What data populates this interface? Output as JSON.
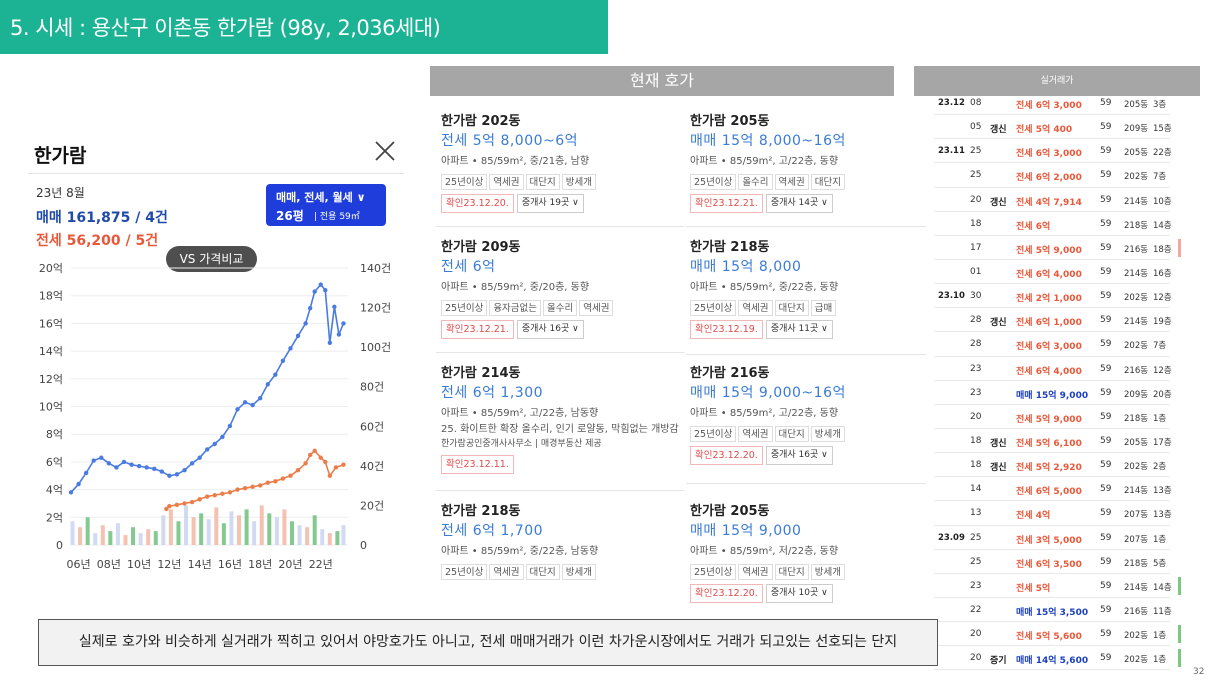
{
  "slide": {
    "title": "5. 시세 : 용산구 이촌동 한가람 (98y, 2,036세대)",
    "page_number": "32",
    "remark": "실제로 호가와 비슷하게 실거래가 찍히고 있어서 야망호가도 아니고, 전세 매매거래가 이런 차가운시장에서도 거래가 되고있는 선호되는 단지"
  },
  "card": {
    "name": "한가람",
    "date": "23년 8월",
    "sale": "매매 161,875 / 4건",
    "jeonse": "전세 56,200 / 5건",
    "filter_types": "매매, 전세, 월세",
    "filter_pyeong": "26평",
    "filter_area": "전용 59㎡",
    "vs_label": "VS 가격비교",
    "close_icon": "close-icon",
    "filter_icon": "chevron-down-icon"
  },
  "chart_data": {
    "type": "line",
    "x_ticks": [
      "06년",
      "08년",
      "10년",
      "12년",
      "14년",
      "16년",
      "18년",
      "20년",
      "22년"
    ],
    "x_range": [
      2005.5,
      2023.8
    ],
    "y_left_ticks": [
      "20억",
      "18억",
      "16억",
      "14억",
      "12억",
      "10억",
      "8억",
      "6억",
      "4억",
      "2억",
      "0"
    ],
    "y_left_range": [
      0,
      20
    ],
    "y_right_ticks": [
      "140건",
      "120건",
      "100건",
      "80건",
      "60건",
      "40건",
      "20건",
      "0"
    ],
    "y_right_range": [
      0,
      140
    ],
    "series": [
      {
        "color": "#4a7be0",
        "x": [
          2005.5,
          2006,
          2006.5,
          2007,
          2007.5,
          2008,
          2008.5,
          2009,
          2009.5,
          2010,
          2010.5,
          2011,
          2011.5,
          2012,
          2012.5,
          2013,
          2013.5,
          2014,
          2014.5,
          2015,
          2015.5,
          2016,
          2016.5,
          2017,
          2017.5,
          2018,
          2018.5,
          2019,
          2019.5,
          2020,
          2020.5,
          2021,
          2021.3,
          2021.6,
          2022,
          2022.3,
          2022.6,
          2022.9,
          2023.2,
          2023.5
        ],
        "y": [
          3.8,
          4.4,
          5.2,
          6.1,
          6.3,
          5.9,
          5.6,
          6.0,
          5.8,
          5.7,
          5.6,
          5.5,
          5.3,
          5.0,
          5.1,
          5.4,
          5.9,
          6.3,
          6.9,
          7.3,
          7.8,
          8.6,
          9.8,
          10.3,
          10.1,
          10.6,
          11.6,
          12.3,
          13.3,
          14.2,
          15.1,
          16.0,
          17.1,
          18.3,
          18.8,
          18.4,
          14.6,
          17.2,
          15.2,
          16.0
        ]
      },
      {
        "color": "#ec7d49",
        "x": [
          2011.8,
          2012,
          2012.5,
          2013,
          2013.5,
          2014,
          2014.5,
          2015,
          2015.5,
          2016,
          2016.5,
          2017,
          2017.5,
          2018,
          2018.5,
          2019,
          2019.5,
          2020,
          2020.5,
          2021,
          2021.3,
          2021.6,
          2022,
          2022.3,
          2022.6,
          2023,
          2023.5
        ],
        "y": [
          2.6,
          2.8,
          2.9,
          3.0,
          3.1,
          3.3,
          3.5,
          3.6,
          3.7,
          3.8,
          4.0,
          4.1,
          4.2,
          4.3,
          4.5,
          4.6,
          4.8,
          5.0,
          5.4,
          5.9,
          6.5,
          6.8,
          6.3,
          6.0,
          5.0,
          5.6,
          5.8
        ]
      }
    ],
    "volume": {
      "type": "bar",
      "colors": [
        "#c9d3f0",
        "#f2b7a3",
        "#6fc07c"
      ],
      "x": [
        2005.6,
        2006.1,
        2006.6,
        2007.1,
        2007.6,
        2008.1,
        2008.6,
        2009.1,
        2009.6,
        2010.1,
        2010.6,
        2011.1,
        2011.6,
        2012.1,
        2012.6,
        2013.1,
        2013.6,
        2014.1,
        2014.6,
        2015.1,
        2015.6,
        2016.1,
        2016.6,
        2017.1,
        2017.6,
        2018.1,
        2018.6,
        2019.1,
        2019.6,
        2020.1,
        2020.6,
        2021.1,
        2021.6,
        2022.1,
        2022.6,
        2023.1,
        2023.5
      ],
      "y": [
        12,
        9,
        14,
        6,
        10,
        7,
        11,
        5,
        9,
        6,
        8,
        7,
        15,
        18,
        12,
        20,
        14,
        16,
        13,
        19,
        11,
        17,
        15,
        18,
        12,
        20,
        16,
        14,
        18,
        12,
        10,
        9,
        15,
        8,
        6,
        7,
        10
      ]
    }
  },
  "listings": {
    "header": "현재 호가",
    "items": [
      {
        "name": "한가람 202동",
        "price": "전세 5억 8,000~6억",
        "spec": "아파트 • 85/59m², 중/21층, 남향",
        "tags": [
          "25년이상",
          "역세권",
          "대단지",
          "방세개"
        ],
        "confirm": "확인23.12.20.",
        "broker": "중개사 19곳"
      },
      {
        "name": "한가람 209동",
        "price": "전세 6억",
        "spec": "아파트 • 85/59m², 중/20층, 동향",
        "tags": [
          "25년이상",
          "융자금없는",
          "올수리",
          "역세권"
        ],
        "confirm": "확인23.12.21.",
        "broker": "중개사 16곳"
      },
      {
        "name": "한가람 214동",
        "price": "전세 6억 1,300",
        "spec": "아파트 • 85/59m², 고/22층, 남동향",
        "extra": "25. 화이트한 확장 올수리, 인기 로얄동, 막힘없는 개방감",
        "agency": "한가람공인중개사사무소 | 매경부동산 제공",
        "tags": [],
        "confirm": "확인23.12.11.",
        "broker": ""
      },
      {
        "name": "한가람 218동",
        "price": "전세 6억 1,700",
        "spec": "아파트 • 85/59m², 중/22층, 남동향",
        "tags": [
          "25년이상",
          "역세권",
          "대단지",
          "방세개"
        ],
        "confirm": "",
        "broker": ""
      },
      {
        "name": "한가람 205동",
        "price": "매매 15억 8,000~16억",
        "spec": "아파트 • 85/59m², 고/22층, 동향",
        "tags": [
          "25년이상",
          "올수리",
          "역세권",
          "대단지"
        ],
        "confirm": "확인23.12.21.",
        "broker": "중개사 14곳"
      },
      {
        "name": "한가람 218동",
        "price": "매매 15억 8,000",
        "spec": "아파트 • 85/59m², 중/22층, 동향",
        "tags": [
          "25년이상",
          "역세권",
          "대단지",
          "급매"
        ],
        "confirm": "확인23.12.19.",
        "broker": "중개사 11곳"
      },
      {
        "name": "한가람 216동",
        "price": "매매 15억 9,000~16억",
        "spec": "아파트 • 85/59m², 고/22층, 동향",
        "tags": [
          "25년이상",
          "역세권",
          "대단지",
          "방세개"
        ],
        "confirm": "확인23.12.20.",
        "broker": "중개사 16곳"
      },
      {
        "name": "한가람 205동",
        "price": "매매 15억 9,000",
        "spec": "아파트 • 85/59m², 저/22층, 동향",
        "tags": [
          "25년이상",
          "역세권",
          "대단지",
          "방세개"
        ],
        "confirm": "확인23.12.20.",
        "broker": "중개사 10곳"
      }
    ]
  },
  "trades": {
    "header": "실거래가",
    "rows": [
      {
        "ym": "23.12",
        "d": "08",
        "t": "",
        "p": "전세 6억 3,000",
        "k": "j",
        "a": "59",
        "dong": "205동",
        "fl": "3층",
        "hl": ""
      },
      {
        "ym": "",
        "d": "05",
        "t": "갱신",
        "p": "전세 5억 400",
        "k": "j",
        "a": "59",
        "dong": "209동",
        "fl": "15층",
        "hl": ""
      },
      {
        "ym": "23.11",
        "d": "25",
        "t": "",
        "p": "전세 6억 3,000",
        "k": "j",
        "a": "59",
        "dong": "205동",
        "fl": "22층",
        "hl": ""
      },
      {
        "ym": "",
        "d": "25",
        "t": "",
        "p": "전세 6억 2,000",
        "k": "j",
        "a": "59",
        "dong": "202동",
        "fl": "7층",
        "hl": ""
      },
      {
        "ym": "",
        "d": "20",
        "t": "갱신",
        "p": "전세 4억 7,914",
        "k": "j",
        "a": "59",
        "dong": "214동",
        "fl": "10층",
        "hl": ""
      },
      {
        "ym": "",
        "d": "18",
        "t": "",
        "p": "전세 6억",
        "k": "j",
        "a": "59",
        "dong": "218동",
        "fl": "14층",
        "hl": ""
      },
      {
        "ym": "",
        "d": "17",
        "t": "",
        "p": "전세 5억 9,000",
        "k": "j",
        "a": "59",
        "dong": "216동",
        "fl": "18층",
        "hl": "#f2a99b"
      },
      {
        "ym": "",
        "d": "01",
        "t": "",
        "p": "전세 6억 4,000",
        "k": "j",
        "a": "59",
        "dong": "214동",
        "fl": "16층",
        "hl": ""
      },
      {
        "ym": "23.10",
        "d": "30",
        "t": "",
        "p": "전세 2억 1,000",
        "k": "j",
        "a": "59",
        "dong": "202동",
        "fl": "12층",
        "hl": ""
      },
      {
        "ym": "",
        "d": "28",
        "t": "갱신",
        "p": "전세 6억 1,000",
        "k": "j",
        "a": "59",
        "dong": "214동",
        "fl": "19층",
        "hl": ""
      },
      {
        "ym": "",
        "d": "28",
        "t": "",
        "p": "전세 6억 3,000",
        "k": "j",
        "a": "59",
        "dong": "202동",
        "fl": "7층",
        "hl": ""
      },
      {
        "ym": "",
        "d": "23",
        "t": "",
        "p": "전세 6억 4,000",
        "k": "j",
        "a": "59",
        "dong": "216동",
        "fl": "12층",
        "hl": ""
      },
      {
        "ym": "",
        "d": "23",
        "t": "",
        "p": "매매 15억 9,000",
        "k": "m",
        "a": "59",
        "dong": "209동",
        "fl": "20층",
        "hl": ""
      },
      {
        "ym": "",
        "d": "20",
        "t": "",
        "p": "전세 5억 9,000",
        "k": "j",
        "a": "59",
        "dong": "218동",
        "fl": "1층",
        "hl": ""
      },
      {
        "ym": "",
        "d": "18",
        "t": "갱신",
        "p": "전세 5억 6,100",
        "k": "j",
        "a": "59",
        "dong": "205동",
        "fl": "17층",
        "hl": ""
      },
      {
        "ym": "",
        "d": "18",
        "t": "갱신",
        "p": "전세 5억 2,920",
        "k": "j",
        "a": "59",
        "dong": "202동",
        "fl": "2층",
        "hl": ""
      },
      {
        "ym": "",
        "d": "14",
        "t": "",
        "p": "전세 6억 5,000",
        "k": "j",
        "a": "59",
        "dong": "214동",
        "fl": "13층",
        "hl": ""
      },
      {
        "ym": "",
        "d": "13",
        "t": "",
        "p": "전세 4억",
        "k": "j",
        "a": "59",
        "dong": "207동",
        "fl": "13층",
        "hl": ""
      },
      {
        "ym": "23.09",
        "d": "25",
        "t": "",
        "p": "전세 3억 5,000",
        "k": "j",
        "a": "59",
        "dong": "207동",
        "fl": "1층",
        "hl": ""
      },
      {
        "ym": "",
        "d": "25",
        "t": "",
        "p": "전세 6억 3,500",
        "k": "j",
        "a": "59",
        "dong": "218동",
        "fl": "5층",
        "hl": ""
      },
      {
        "ym": "",
        "d": "23",
        "t": "",
        "p": "전세 5억",
        "k": "j",
        "a": "59",
        "dong": "214동",
        "fl": "14층",
        "hl": "#7cc87e"
      },
      {
        "ym": "",
        "d": "22",
        "t": "",
        "p": "매매 15억 3,500",
        "k": "m",
        "a": "59",
        "dong": "216동",
        "fl": "11층",
        "hl": ""
      },
      {
        "ym": "",
        "d": "20",
        "t": "",
        "p": "전세 5억 5,600",
        "k": "j",
        "a": "59",
        "dong": "202동",
        "fl": "1층",
        "hl": "#7cc87e"
      },
      {
        "ym": "",
        "d": "20",
        "t": "증기",
        "p": "매매 14억 5,600",
        "k": "m",
        "a": "59",
        "dong": "202동",
        "fl": "1층",
        "hl": "#7cc87e"
      }
    ]
  }
}
